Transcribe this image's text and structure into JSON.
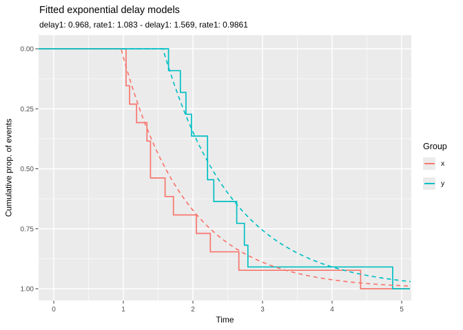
{
  "chart_data": {
    "type": "line",
    "subtype": "ecdf-steps-with-fitted-exponential-curves",
    "title": "Fitted exponential delay models",
    "subtitle": "delay1: 0.968, rate1: 1.083 - delay1: 1.569, rate1: 0.9861",
    "xlabel": "Time",
    "ylabel": "Cumulative prop. of events",
    "x_axis": {
      "tick_values": [
        0,
        1,
        2,
        3,
        4,
        5
      ],
      "tick_labels": [
        "0",
        "1",
        "2",
        "3",
        "4",
        "5"
      ],
      "minor_values": [
        0.5,
        1.5,
        2.5,
        3.5,
        4.5
      ],
      "range_shown": [
        -0.22,
        5.14
      ]
    },
    "y_axis": {
      "tick_values": [
        0,
        0.25,
        0.5,
        0.75,
        1
      ],
      "tick_labels": [
        "0.00",
        "0.25",
        "0.50",
        "0.75",
        "1.00"
      ],
      "minor_values": [
        0.125,
        0.375,
        0.625,
        0.875
      ],
      "reversed": true,
      "range": [
        0,
        1
      ]
    },
    "grid": "on",
    "legend": {
      "title": "Group",
      "position": "right",
      "entries": [
        {
          "label": "x",
          "color": "#F8766D"
        },
        {
          "label": "y",
          "color": "#00BFC4"
        }
      ]
    },
    "series": [
      {
        "name": "x-ecdf-step",
        "group": "x",
        "color": "#F8766D",
        "kind": "ecdf-step",
        "events": [
          {
            "t": 1.04,
            "p": 0.1538
          },
          {
            "t": 1.09,
            "p": 0.2308
          },
          {
            "t": 1.19,
            "p": 0.3077
          },
          {
            "t": 1.34,
            "p": 0.3846
          },
          {
            "t": 1.39,
            "p": 0.5385
          },
          {
            "t": 1.6,
            "p": 0.6154
          },
          {
            "t": 1.72,
            "p": 0.6923
          },
          {
            "t": 2.05,
            "p": 0.7692
          },
          {
            "t": 2.25,
            "p": 0.8462
          },
          {
            "t": 2.66,
            "p": 0.9231
          },
          {
            "t": 4.41,
            "p": 1.0
          }
        ],
        "end_t": 5.12
      },
      {
        "name": "y-ecdf-step",
        "group": "y",
        "color": "#00BFC4",
        "kind": "ecdf-step",
        "events": [
          {
            "t": 1.65,
            "p": 0.0909
          },
          {
            "t": 1.82,
            "p": 0.1818
          },
          {
            "t": 1.9,
            "p": 0.2727
          },
          {
            "t": 1.98,
            "p": 0.3636
          },
          {
            "t": 2.21,
            "p": 0.5455
          },
          {
            "t": 2.3,
            "p": 0.6364
          },
          {
            "t": 2.63,
            "p": 0.7273
          },
          {
            "t": 2.74,
            "p": 0.8182
          },
          {
            "t": 2.79,
            "p": 0.9091
          },
          {
            "t": 4.87,
            "p": 1.0
          }
        ],
        "end_t": 5.12
      },
      {
        "name": "x-fitted-model",
        "group": "x",
        "color": "#F8766D",
        "kind": "exp-model",
        "delay": 0.968,
        "rate": 1.083,
        "dashed": true
      },
      {
        "name": "y-fitted-model",
        "group": "y",
        "color": "#00BFC4",
        "kind": "exp-model",
        "delay": 1.569,
        "rate": 0.9861,
        "dashed": true
      }
    ],
    "colors": {
      "panel_bg": "#EBEBEB",
      "grid": "#FFFFFF",
      "tick_text": "#4D4D4D",
      "text": "#000000"
    }
  }
}
